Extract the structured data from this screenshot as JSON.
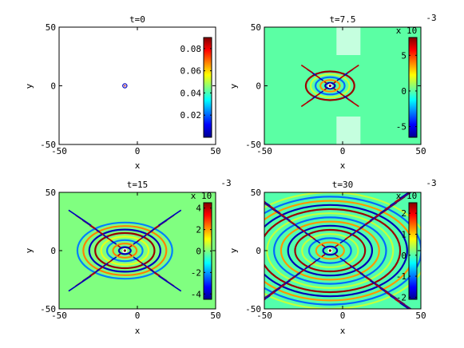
{
  "chart_data": [
    {
      "type": "heatmap",
      "title": "t=0",
      "xlabel": "x",
      "ylabel": "y",
      "xlim": [
        -50,
        50
      ],
      "ylim": [
        -50,
        50
      ],
      "x_ticks": [
        "-50",
        "0",
        "50"
      ],
      "y_ticks": [
        "50",
        "0",
        "-50"
      ],
      "x_tick_values": [
        -50,
        0,
        50
      ],
      "y_tick_values": [
        50,
        0,
        -50
      ],
      "colorbar_range": [
        0,
        0.09
      ],
      "colorbar_ticks": [
        "0.08",
        "0.06",
        "0.04",
        "0.02"
      ],
      "colorbar_tick_values": [
        0.08,
        0.06,
        0.04,
        0.02
      ],
      "colorbar_exponent": "",
      "source_center": [
        -8,
        0
      ],
      "background_value": 0,
      "pattern": "point"
    },
    {
      "type": "heatmap",
      "title": "t=7.5",
      "xlabel": "x",
      "ylabel": "y",
      "xlim": [
        -50,
        50
      ],
      "ylim": [
        -50,
        50
      ],
      "x_ticks": [
        "-50",
        "0",
        "50"
      ],
      "y_ticks": [
        "50",
        "0",
        "-50"
      ],
      "x_tick_values": [
        -50,
        0,
        50
      ],
      "y_tick_values": [
        50,
        0,
        -50
      ],
      "colorbar_range": [
        -6.5,
        7.5
      ],
      "colorbar_ticks": [
        "5",
        "0",
        "-5"
      ],
      "colorbar_tick_values": [
        5,
        0,
        -5
      ],
      "colorbar_exponent": "x 10",
      "colorbar_exponent_power": "-3",
      "source_center": [
        -8,
        0
      ],
      "background_value": 0,
      "pattern": "waves"
    },
    {
      "type": "heatmap",
      "title": "t=15",
      "xlabel": "x",
      "ylabel": "y",
      "xlim": [
        -50,
        50
      ],
      "ylim": [
        -50,
        50
      ],
      "x_ticks": [
        "-50",
        "0",
        "50"
      ],
      "y_ticks": [
        "50",
        "0",
        "-50"
      ],
      "x_tick_values": [
        -50,
        0,
        50
      ],
      "y_tick_values": [
        50,
        0,
        -50
      ],
      "colorbar_range": [
        -4.5,
        4.5
      ],
      "colorbar_ticks": [
        "4",
        "2",
        "0",
        "-2",
        "-4"
      ],
      "colorbar_tick_values": [
        4,
        2,
        0,
        -2,
        -4
      ],
      "colorbar_exponent": "x 10",
      "colorbar_exponent_power": "-3",
      "source_center": [
        -8,
        0
      ],
      "background_value": 0,
      "pattern": "waves"
    },
    {
      "type": "heatmap",
      "title": "t=30",
      "xlabel": "x",
      "ylabel": "y",
      "xlim": [
        -50,
        50
      ],
      "ylim": [
        -50,
        50
      ],
      "x_ticks": [
        "-50",
        "0",
        "50"
      ],
      "y_ticks": [
        "50",
        "0",
        "-50"
      ],
      "x_tick_values": [
        -50,
        0,
        50
      ],
      "y_tick_values": [
        50,
        0,
        -50
      ],
      "colorbar_range": [
        -2.1,
        2.5
      ],
      "colorbar_ticks": [
        "2",
        "1",
        "0",
        "-1",
        "-2"
      ],
      "colorbar_tick_values": [
        2,
        1,
        0,
        -1,
        -2
      ],
      "colorbar_exponent": "x 10",
      "colorbar_exponent_power": "-3",
      "source_center": [
        -8,
        0
      ],
      "background_value": 0,
      "pattern": "waves"
    }
  ],
  "colormap": [
    "#00008f",
    "#0000ff",
    "#00ffff",
    "#ffff00",
    "#ff0000",
    "#800000"
  ]
}
